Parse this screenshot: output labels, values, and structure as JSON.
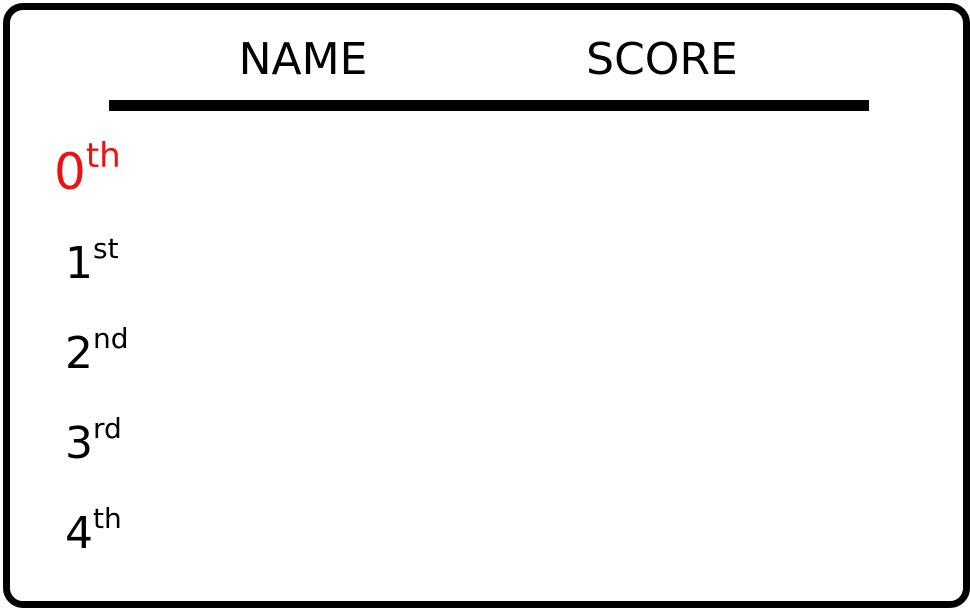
{
  "header": {
    "name_label": "NAME",
    "score_label": "SCORE"
  },
  "colors": {
    "highlight": "#ee1111",
    "text": "#000000",
    "border": "#000000"
  },
  "rows": [
    {
      "rank_number": "0",
      "rank_suffix": "th",
      "name": "",
      "score": "",
      "highlighted": true
    },
    {
      "rank_number": "1",
      "rank_suffix": "st",
      "name": "",
      "score": "",
      "highlighted": false
    },
    {
      "rank_number": "2",
      "rank_suffix": "nd",
      "name": "",
      "score": "",
      "highlighted": false
    },
    {
      "rank_number": "3",
      "rank_suffix": "rd",
      "name": "",
      "score": "",
      "highlighted": false
    },
    {
      "rank_number": "4",
      "rank_suffix": "th",
      "name": "",
      "score": "",
      "highlighted": false
    }
  ]
}
